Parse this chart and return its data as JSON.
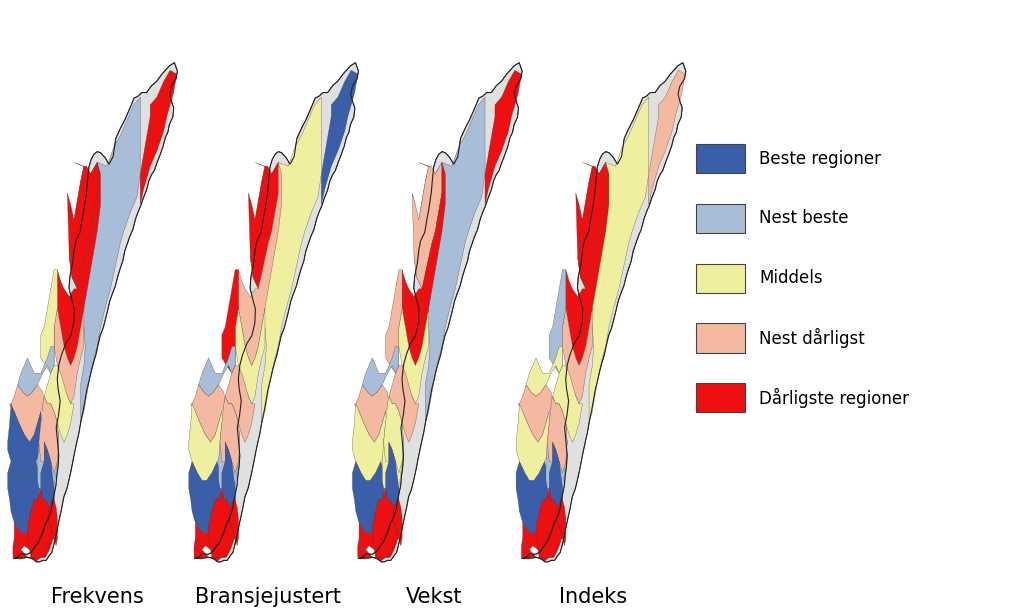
{
  "map_labels": [
    "Frekvens",
    "Bransjejustert",
    "Vekst",
    "Indeks"
  ],
  "map_label_fontsize": 15,
  "legend_entries": [
    {
      "label": "Beste regioner",
      "color": "#3A5EA8"
    },
    {
      "label": "Nest beste",
      "color": "#A8BDD8"
    },
    {
      "label": "Middels",
      "color": "#F0EFA0"
    },
    {
      "label": "Nest dårligst",
      "color": "#F5B8A0"
    },
    {
      "label": "Dårligste regioner",
      "color": "#EE1010"
    }
  ],
  "legend_fontsize": 12,
  "figure_width": 10.23,
  "figure_height": 6.1,
  "background_color": "#ffffff"
}
